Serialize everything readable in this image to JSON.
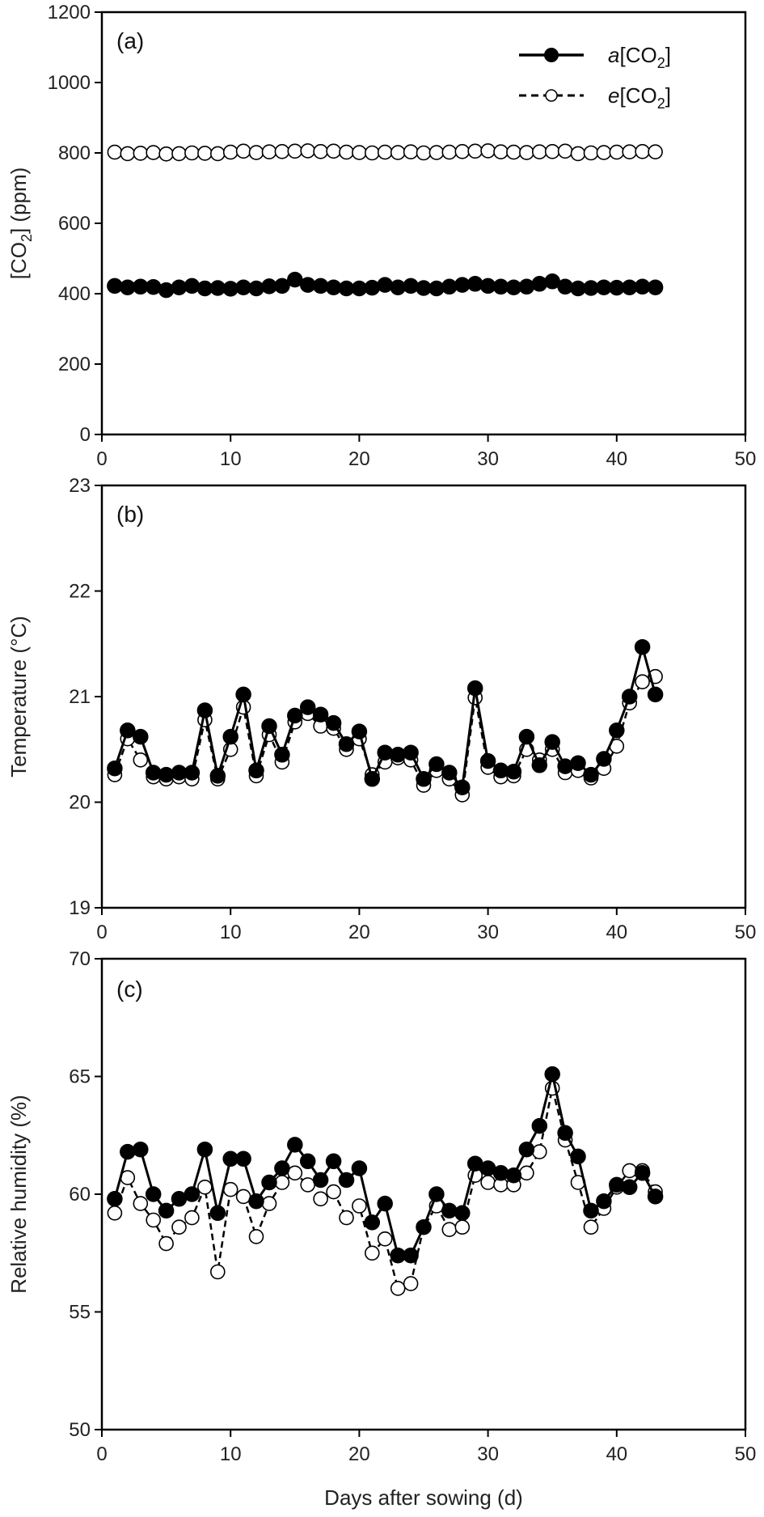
{
  "chart_data": [
    {
      "type": "line",
      "panel_label": "(a)",
      "ylabel": "[CO2] (ppm)",
      "ylabel_parts": {
        "open": "[CO",
        "sub": "2",
        "close": "] (ppm)"
      },
      "xlabel": "",
      "xlim": [
        0,
        50
      ],
      "ylim": [
        0,
        1200
      ],
      "xticks": [
        "0",
        "10",
        "20",
        "30",
        "40",
        "50"
      ],
      "yticks": [
        "0",
        "200",
        "400",
        "600",
        "800",
        "1000",
        "1200"
      ],
      "grid": false,
      "legend": "top-right",
      "legend_entries": [
        {
          "italic": "a",
          "open": "[CO",
          "sub": "2",
          "close": "]"
        },
        {
          "italic": "e",
          "open": "[CO",
          "sub": "2",
          "close": "]"
        }
      ],
      "x": [
        1,
        2,
        3,
        4,
        5,
        6,
        7,
        8,
        9,
        10,
        11,
        12,
        13,
        14,
        15,
        16,
        17,
        18,
        19,
        20,
        21,
        22,
        23,
        24,
        25,
        26,
        27,
        28,
        29,
        30,
        31,
        32,
        33,
        34,
        35,
        36,
        37,
        38,
        39,
        40,
        41,
        42,
        43
      ],
      "series": [
        {
          "marker": "filled",
          "line": "solid",
          "values": [
            422,
            418,
            420,
            419,
            410,
            418,
            422,
            415,
            416,
            414,
            418,
            415,
            421,
            422,
            440,
            425,
            422,
            418,
            415,
            415,
            417,
            425,
            418,
            422,
            416,
            415,
            420,
            425,
            428,
            422,
            420,
            418,
            420,
            428,
            435,
            420,
            415,
            416,
            418,
            417,
            418,
            420,
            418
          ]
        },
        {
          "marker": "open",
          "line": "dashed",
          "values": [
            802,
            798,
            799,
            801,
            797,
            798,
            800,
            799,
            798,
            802,
            805,
            801,
            803,
            804,
            805,
            806,
            804,
            805,
            802,
            801,
            800,
            802,
            801,
            803,
            800,
            801,
            802,
            804,
            805,
            806,
            803,
            802,
            801,
            803,
            804,
            805,
            798,
            800,
            801,
            802,
            803,
            804,
            803
          ]
        }
      ]
    },
    {
      "type": "line",
      "panel_label": "(b)",
      "ylabel": "Temperature (°C)",
      "xlabel": "",
      "xlim": [
        0,
        50
      ],
      "ylim": [
        19,
        23
      ],
      "xticks": [
        "0",
        "10",
        "20",
        "30",
        "40",
        "50"
      ],
      "yticks": [
        "19",
        "20",
        "21",
        "22",
        "23"
      ],
      "grid": false,
      "x": [
        1,
        2,
        3,
        4,
        5,
        6,
        7,
        8,
        9,
        10,
        11,
        12,
        13,
        14,
        15,
        16,
        17,
        18,
        19,
        20,
        21,
        22,
        23,
        24,
        25,
        26,
        27,
        28,
        29,
        30,
        31,
        32,
        33,
        34,
        35,
        36,
        37,
        38,
        39,
        40,
        41,
        42,
        43
      ],
      "series": [
        {
          "marker": "filled",
          "line": "solid",
          "values": [
            20.32,
            20.68,
            20.62,
            20.28,
            20.26,
            20.28,
            20.28,
            20.87,
            20.25,
            20.62,
            21.02,
            20.3,
            20.72,
            20.45,
            20.82,
            20.9,
            20.83,
            20.75,
            20.55,
            20.67,
            20.22,
            20.47,
            20.45,
            20.47,
            20.22,
            20.36,
            20.28,
            20.14,
            21.08,
            20.39,
            20.3,
            20.29,
            20.62,
            20.35,
            20.57,
            20.34,
            20.37,
            20.26,
            20.41,
            20.68,
            21.0,
            21.47,
            21.02
          ]
        },
        {
          "marker": "open",
          "line": "dashed",
          "values": [
            20.26,
            20.6,
            20.4,
            20.24,
            20.22,
            20.24,
            20.22,
            20.78,
            20.22,
            20.5,
            20.9,
            20.25,
            20.64,
            20.38,
            20.76,
            20.84,
            20.72,
            20.7,
            20.5,
            20.6,
            20.26,
            20.38,
            20.42,
            20.4,
            20.16,
            20.3,
            20.22,
            20.07,
            20.99,
            20.33,
            20.24,
            20.25,
            20.5,
            20.4,
            20.5,
            20.28,
            20.3,
            20.23,
            20.32,
            20.53,
            20.94,
            21.14,
            21.19
          ]
        }
      ]
    },
    {
      "type": "line",
      "panel_label": "(c)",
      "ylabel": "Relative humidity (%)",
      "xlabel": "Days after sowing (d)",
      "xlim": [
        0,
        50
      ],
      "ylim": [
        50,
        70
      ],
      "xticks": [
        "0",
        "10",
        "20",
        "30",
        "40",
        "50"
      ],
      "yticks": [
        "50",
        "55",
        "60",
        "65",
        "70"
      ],
      "grid": false,
      "x": [
        1,
        2,
        3,
        4,
        5,
        6,
        7,
        8,
        9,
        10,
        11,
        12,
        13,
        14,
        15,
        16,
        17,
        18,
        19,
        20,
        21,
        22,
        23,
        24,
        25,
        26,
        27,
        28,
        29,
        30,
        31,
        32,
        33,
        34,
        35,
        36,
        37,
        38,
        39,
        40,
        41,
        42,
        43
      ],
      "series": [
        {
          "marker": "filled",
          "line": "solid",
          "values": [
            59.8,
            61.8,
            61.9,
            60.0,
            59.3,
            59.8,
            60.0,
            61.9,
            59.2,
            61.5,
            61.5,
            59.7,
            60.5,
            61.1,
            62.1,
            61.4,
            60.6,
            61.4,
            60.6,
            61.1,
            58.8,
            59.6,
            57.4,
            57.4,
            58.6,
            60.0,
            59.3,
            59.2,
            61.3,
            61.1,
            60.9,
            60.8,
            61.9,
            62.9,
            65.1,
            62.6,
            61.6,
            59.3,
            59.7,
            60.4,
            60.3,
            60.9,
            59.9
          ]
        },
        {
          "marker": "open",
          "line": "dashed",
          "values": [
            59.2,
            60.7,
            59.6,
            58.9,
            57.9,
            58.6,
            59.0,
            60.3,
            56.7,
            60.2,
            59.9,
            58.2,
            59.6,
            60.5,
            60.9,
            60.4,
            59.8,
            60.1,
            59.0,
            59.5,
            57.5,
            58.1,
            56.0,
            56.2,
            58.6,
            59.5,
            58.5,
            58.6,
            60.8,
            60.5,
            60.4,
            60.4,
            60.9,
            61.8,
            64.5,
            62.3,
            60.5,
            58.6,
            59.4,
            60.3,
            61.0,
            61.0,
            60.1
          ]
        }
      ]
    }
  ]
}
